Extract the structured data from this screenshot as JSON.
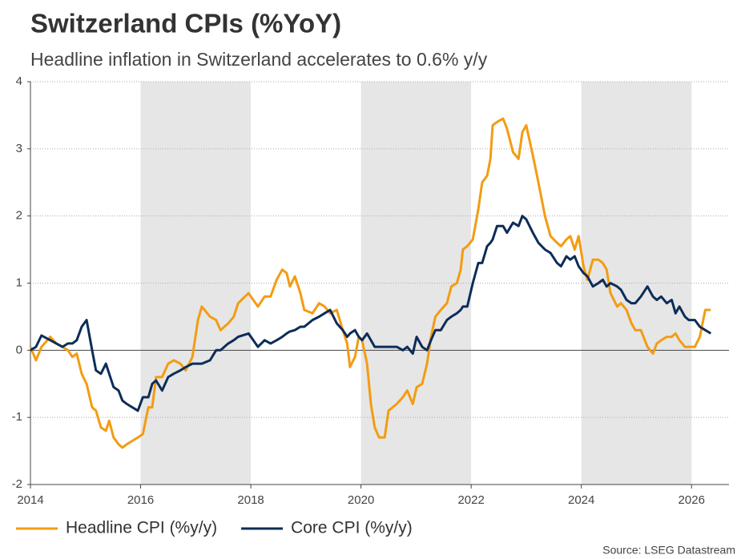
{
  "chart_data": {
    "type": "line",
    "title": "Switzerland CPIs (%YoY)",
    "subtitle": "Headline inflation in Switzerland accelerates to 0.6% y/y",
    "source": "Source: LSEG Datastream",
    "x": [
      2014.0,
      2014.1,
      2014.2,
      2014.36,
      2014.47,
      2014.58,
      2014.68,
      2014.76,
      2014.84,
      2014.93,
      2015.02,
      2015.12,
      2015.19,
      2015.28,
      2015.37,
      2015.43,
      2015.51,
      2015.6,
      2015.67,
      2015.75,
      2015.85,
      2015.95,
      2016.04,
      2016.14,
      2016.21,
      2016.28,
      2016.39,
      2016.5,
      2016.6,
      2016.72,
      2016.82,
      2016.94,
      2017.04,
      2017.11,
      2017.26,
      2017.37,
      2017.45,
      2017.59,
      2017.69,
      2017.77,
      2017.96,
      2018.13,
      2018.25,
      2018.36,
      2018.47,
      2018.57,
      2018.65,
      2018.71,
      2018.8,
      2018.9,
      2018.97,
      2019.12,
      2019.24,
      2019.34,
      2019.44,
      2019.56,
      2019.67,
      2019.75,
      2019.8,
      2019.89,
      2019.96,
      2020.02,
      2020.11,
      2020.18,
      2020.25,
      2020.33,
      2020.43,
      2020.5,
      2020.65,
      2020.76,
      2020.84,
      2020.94,
      2021.01,
      2021.11,
      2021.2,
      2021.27,
      2021.35,
      2021.45,
      2021.56,
      2021.64,
      2021.74,
      2021.81,
      2021.85,
      2021.93,
      2022.03,
      2022.13,
      2022.2,
      2022.29,
      2022.35,
      2022.39,
      2022.47,
      2022.58,
      2022.65,
      2022.76,
      2022.86,
      2022.93,
      2023.0,
      2023.12,
      2023.22,
      2023.34,
      2023.44,
      2023.56,
      2023.63,
      2023.73,
      2023.8,
      2023.88,
      2023.95,
      2024.04,
      2024.11,
      2024.21,
      2024.31,
      2024.39,
      2024.46,
      2024.53,
      2024.65,
      2024.72,
      2024.82,
      2024.91,
      2024.98,
      2025.08,
      2025.2,
      2025.3,
      2025.37,
      2025.45,
      2025.55,
      2025.64,
      2025.71,
      2025.78,
      2025.88,
      2025.95,
      2026.06,
      2026.15,
      2026.25,
      2026.35
    ],
    "series": [
      {
        "name": "Headline CPI (%y/y)",
        "color": "#f39c12",
        "values": [
          0.05,
          -0.15,
          0.05,
          0.2,
          0.1,
          0.05,
          0.0,
          -0.1,
          -0.05,
          -0.35,
          -0.5,
          -0.85,
          -0.9,
          -1.15,
          -1.2,
          -1.05,
          -1.3,
          -1.4,
          -1.45,
          -1.4,
          -1.35,
          -1.3,
          -1.25,
          -0.85,
          -0.85,
          -0.4,
          -0.4,
          -0.2,
          -0.15,
          -0.2,
          -0.3,
          -0.1,
          0.45,
          0.65,
          0.5,
          0.45,
          0.3,
          0.4,
          0.5,
          0.7,
          0.85,
          0.65,
          0.8,
          0.8,
          1.05,
          1.2,
          1.15,
          0.95,
          1.1,
          0.85,
          0.6,
          0.55,
          0.7,
          0.65,
          0.55,
          0.6,
          0.3,
          0.1,
          -0.25,
          -0.1,
          0.2,
          0.15,
          -0.2,
          -0.8,
          -1.15,
          -1.3,
          -1.3,
          -0.9,
          -0.8,
          -0.7,
          -0.6,
          -0.8,
          -0.55,
          -0.5,
          -0.2,
          0.2,
          0.5,
          0.6,
          0.7,
          0.95,
          1.0,
          1.2,
          1.5,
          1.55,
          1.65,
          2.1,
          2.5,
          2.6,
          2.85,
          3.35,
          3.4,
          3.45,
          3.3,
          2.95,
          2.85,
          3.25,
          3.35,
          2.9,
          2.5,
          2.0,
          1.7,
          1.6,
          1.55,
          1.65,
          1.7,
          1.5,
          1.7,
          1.25,
          1.05,
          1.35,
          1.35,
          1.3,
          1.2,
          0.85,
          0.65,
          0.7,
          0.6,
          0.4,
          0.3,
          0.3,
          0.05,
          -0.05,
          0.1,
          0.15,
          0.2,
          0.2,
          0.25,
          0.15,
          0.05,
          0.05,
          0.05,
          0.2,
          0.6,
          0.6
        ]
      },
      {
        "name": "Core CPI (%y/y)",
        "color": "#0c2d57",
        "values": [
          0.0,
          0.05,
          0.22,
          0.15,
          0.1,
          0.05,
          0.1,
          0.1,
          0.15,
          0.35,
          0.45,
          0.0,
          -0.3,
          -0.35,
          -0.2,
          -0.35,
          -0.55,
          -0.6,
          -0.75,
          -0.8,
          -0.85,
          -0.9,
          -0.7,
          -0.7,
          -0.5,
          -0.45,
          -0.6,
          -0.4,
          -0.35,
          -0.3,
          -0.25,
          -0.2,
          -0.2,
          -0.2,
          -0.15,
          0.0,
          0.0,
          0.1,
          0.15,
          0.2,
          0.25,
          0.05,
          0.15,
          0.1,
          0.15,
          0.2,
          0.25,
          0.28,
          0.3,
          0.35,
          0.35,
          0.45,
          0.5,
          0.55,
          0.6,
          0.4,
          0.3,
          0.2,
          0.25,
          0.3,
          0.2,
          0.15,
          0.25,
          0.15,
          0.05,
          0.05,
          0.05,
          0.05,
          0.05,
          0.0,
          0.05,
          -0.05,
          0.2,
          0.05,
          0.0,
          0.15,
          0.3,
          0.3,
          0.45,
          0.5,
          0.55,
          0.6,
          0.65,
          0.65,
          1.0,
          1.3,
          1.3,
          1.55,
          1.6,
          1.65,
          1.85,
          1.85,
          1.75,
          1.9,
          1.85,
          2.0,
          1.95,
          1.75,
          1.6,
          1.5,
          1.45,
          1.3,
          1.25,
          1.4,
          1.35,
          1.4,
          1.25,
          1.15,
          1.1,
          0.95,
          1.0,
          1.05,
          0.95,
          1.0,
          0.95,
          0.9,
          0.75,
          0.7,
          0.7,
          0.8,
          0.95,
          0.8,
          0.75,
          0.8,
          0.7,
          0.75,
          0.55,
          0.65,
          0.5,
          0.45,
          0.45,
          0.35,
          0.3,
          0.25
        ]
      }
    ],
    "xlim": [
      2014,
      2026.68
    ],
    "xticks": [
      2014,
      2016,
      2018,
      2020,
      2022,
      2024,
      2026
    ],
    "ylim": [
      -2,
      4
    ],
    "yticks": [
      -2,
      -1,
      0,
      1,
      2,
      3,
      4
    ],
    "grid": true,
    "shade_alternate": true,
    "legend": "bottom"
  }
}
